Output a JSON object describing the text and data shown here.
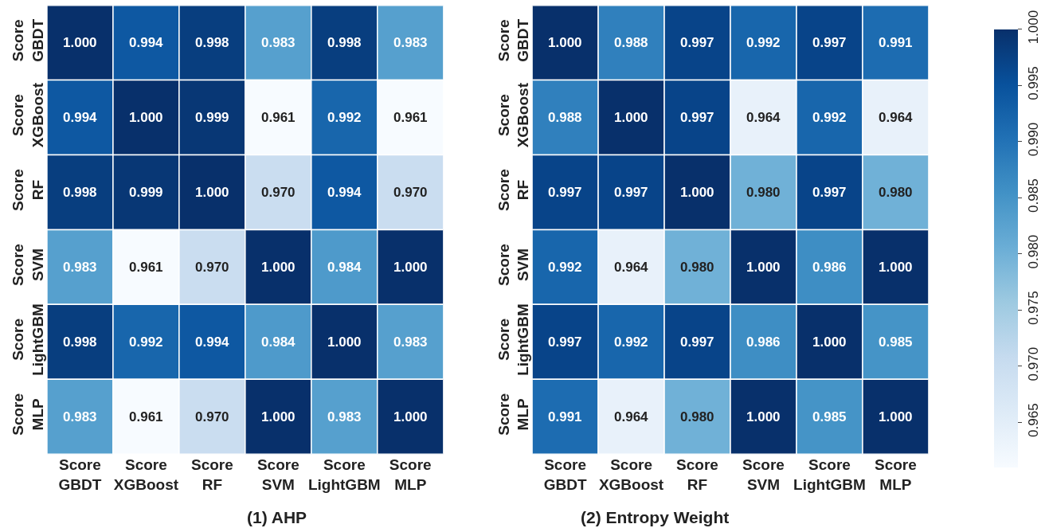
{
  "chart_data": [
    {
      "type": "heatmap",
      "title": "(1) AHP",
      "categories": [
        "Score\nGBDT",
        "Score\nXGBoost",
        "Score\nRF",
        "Score\nSVM",
        "Score\nLightGBM",
        "Score\nMLP"
      ],
      "y_categories": [
        "Score\nGBDT",
        "Score\nXGBoost",
        "Score\nRF",
        "Score\nSVM",
        "Score\nLightGBM",
        "Score\nMLP"
      ],
      "cells": [
        [
          1.0,
          0.994,
          0.998,
          0.983,
          0.998,
          0.983
        ],
        [
          0.994,
          1.0,
          0.999,
          0.961,
          0.992,
          0.961
        ],
        [
          0.998,
          0.999,
          1.0,
          0.97,
          0.994,
          0.97
        ],
        [
          0.983,
          0.961,
          0.97,
          1.0,
          0.984,
          1.0
        ],
        [
          0.998,
          0.992,
          0.994,
          0.984,
          1.0,
          0.983
        ],
        [
          0.983,
          0.961,
          0.97,
          1.0,
          0.983,
          1.0
        ]
      ],
      "cell_labels": [
        [
          "1.000",
          "0.994",
          "0.998",
          "0.983",
          "0.998",
          "0.983"
        ],
        [
          "0.994",
          "1.000",
          "0.999",
          "0.961",
          "0.992",
          "0.961"
        ],
        [
          "0.998",
          "0.999",
          "1.000",
          "0.970",
          "0.994",
          "0.970"
        ],
        [
          "0.983",
          "0.961",
          "0.970",
          "1.000",
          "0.984",
          "1.000"
        ],
        [
          "0.998",
          "0.992",
          "0.994",
          "0.984",
          "1.000",
          "0.983"
        ],
        [
          "0.983",
          "0.961",
          "0.970",
          "1.000",
          "0.983",
          "1.000"
        ]
      ]
    },
    {
      "type": "heatmap",
      "title": "(2) Entropy Weight",
      "categories": [
        "Score\nGBDT",
        "Score\nXGBoost",
        "Score\nRF",
        "Score\nSVM",
        "Score\nLightGBM",
        "Score\nMLP"
      ],
      "y_categories": [
        "Score\nGBDT",
        "Score\nXGBoost",
        "Score\nRF",
        "Score\nSVM",
        "Score\nLightGBM",
        "Score\nMLP"
      ],
      "cells": [
        [
          1.0,
          0.988,
          0.997,
          0.992,
          0.997,
          0.991
        ],
        [
          0.988,
          1.0,
          0.997,
          0.964,
          0.992,
          0.964
        ],
        [
          0.997,
          0.997,
          1.0,
          0.98,
          0.997,
          0.98
        ],
        [
          0.992,
          0.964,
          0.98,
          1.0,
          0.986,
          1.0
        ],
        [
          0.997,
          0.992,
          0.997,
          0.986,
          1.0,
          0.985
        ],
        [
          0.991,
          0.964,
          0.98,
          1.0,
          0.985,
          1.0
        ]
      ],
      "cell_labels": [
        [
          "1.000",
          "0.988",
          "0.997",
          "0.992",
          "0.997",
          "0.991"
        ],
        [
          "0.988",
          "1.000",
          "0.997",
          "0.964",
          "0.992",
          "0.964"
        ],
        [
          "0.997",
          "0.997",
          "1.000",
          "0.980",
          "0.997",
          "0.980"
        ],
        [
          "0.992",
          "0.964",
          "0.980",
          "1.000",
          "0.986",
          "1.000"
        ],
        [
          "0.997",
          "0.992",
          "0.997",
          "0.986",
          "1.000",
          "0.985"
        ],
        [
          "0.991",
          "0.964",
          "0.980",
          "1.000",
          "0.985",
          "1.000"
        ]
      ],
      "clim": [
        0.961,
        1.0
      ],
      "cticks": [
        0.965,
        {
          "value": 0.97,
          "label": "0.970"
        },
        0.975,
        {
          "value": 0.98,
          "label": "0.980"
        },
        0.985,
        {
          "value": 0.99,
          "label": "0.990"
        },
        0.995,
        {
          "value": 1,
          "label": "1.000"
        }
      ]
    }
  ]
}
